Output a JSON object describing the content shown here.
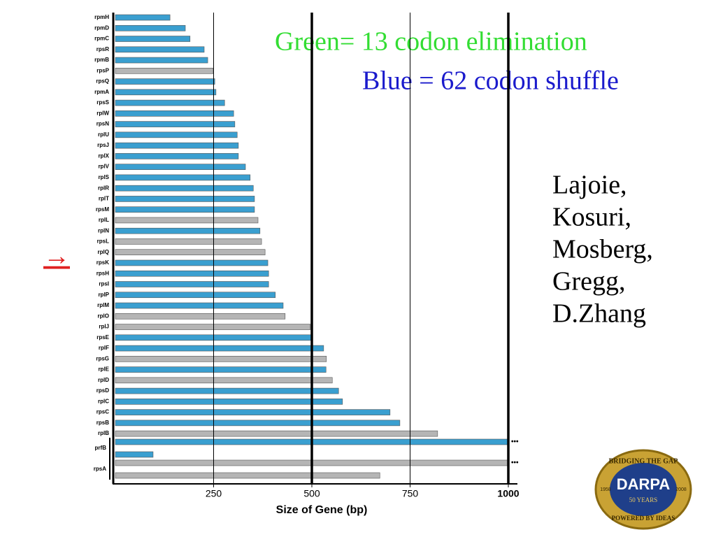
{
  "chart_data": {
    "type": "bar",
    "orientation": "horizontal",
    "categories": [
      "rpmH",
      "rpmD",
      "rpmC",
      "rpsR",
      "rpmB",
      "rpsP",
      "rpsQ",
      "rpmA",
      "rpsS",
      "rplW",
      "rpsN",
      "rplU",
      "rpsJ",
      "rplX",
      "rplV",
      "rplS",
      "rplR",
      "rplT",
      "rpsM",
      "rplL",
      "rplN",
      "rpsL",
      "rplQ",
      "rpsK",
      "rpsH",
      "rpsI",
      "rplP",
      "rplM",
      "rplO",
      "rplJ",
      "rpsE",
      "rplF",
      "rpsG",
      "rplE",
      "rplD",
      "rpsD",
      "rplC",
      "rpsC",
      "rpsB",
      "rplB"
    ],
    "values": [
      139,
      178,
      190,
      226,
      235,
      249,
      253,
      256,
      278,
      301,
      304,
      310,
      313,
      313,
      331,
      343,
      351,
      354,
      354,
      363,
      368,
      372,
      381,
      388,
      390,
      390,
      407,
      427,
      432,
      496,
      500,
      530,
      537,
      536,
      552,
      568,
      578,
      699,
      724,
      820
    ],
    "colors": [
      "#3a9fd0",
      "#3a9fd0",
      "#3a9fd0",
      "#3a9fd0",
      "#3a9fd0",
      "#b5b5b5",
      "#3a9fd0",
      "#3a9fd0",
      "#3a9fd0",
      "#3a9fd0",
      "#3a9fd0",
      "#3a9fd0",
      "#3a9fd0",
      "#3a9fd0",
      "#3a9fd0",
      "#3a9fd0",
      "#3a9fd0",
      "#3a9fd0",
      "#3a9fd0",
      "#b5b5b5",
      "#3a9fd0",
      "#b5b5b5",
      "#b5b5b5",
      "#3a9fd0",
      "#3a9fd0",
      "#3a9fd0",
      "#3a9fd0",
      "#3a9fd0",
      "#b5b5b5",
      "#b5b5b5",
      "#3a9fd0",
      "#3a9fd0",
      "#b5b5b5",
      "#3a9fd0",
      "#b5b5b5",
      "#3a9fd0",
      "#3a9fd0",
      "#3a9fd0",
      "#3a9fd0",
      "#b5b5b5"
    ],
    "extra_rows": [
      {
        "name": "prfB",
        "values": [
          1000,
          96
        ],
        "colors": [
          "#3a9fd0",
          "#3a9fd0"
        ]
      },
      {
        "name": "rpsA",
        "values": [
          1000,
          673
        ],
        "colors": [
          "#b5b5b5",
          "#b5b5b5"
        ]
      }
    ],
    "overflow_mark": "•••",
    "xlim": [
      0,
      1000
    ],
    "xticks": [
      250,
      500,
      750,
      1000
    ],
    "grid": true,
    "xlabel": "Size of Gene (bp)"
  },
  "annotations": {
    "green_note": "Green= 13 codon elimination",
    "blue_note": "Blue = 62 codon shuffle",
    "arrow": "→"
  },
  "authors": [
    "Lajoie,",
    "Kosuri,",
    "Mosberg,",
    "Gregg,",
    "D.Zhang"
  ],
  "logo": {
    "top": "BRIDGING THE GAP",
    "name": "DARPA",
    "years": "50 YEARS",
    "bottom": "POWERED BY IDEAS",
    "start": "1958",
    "end": "2008"
  }
}
